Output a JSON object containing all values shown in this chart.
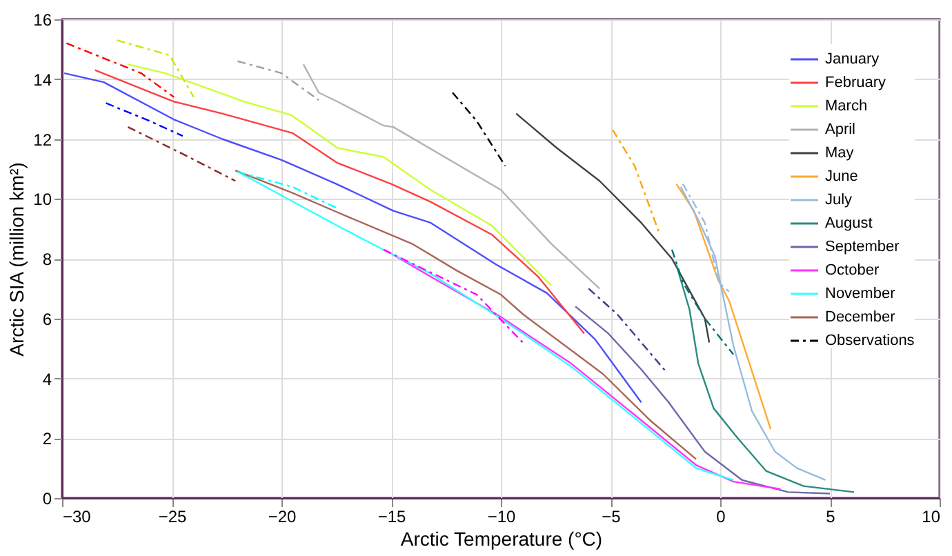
{
  "chart_data": {
    "type": "line",
    "xlabel": "Arctic Temperature (°C)",
    "ylabel": "Arctic SIA (million km²)",
    "xlim": [
      -30,
      10
    ],
    "ylim": [
      0,
      16
    ],
    "xticks": [
      -30,
      -25,
      -20,
      -15,
      -10,
      -5,
      0,
      5,
      10
    ],
    "yticks": [
      0,
      2,
      4,
      6,
      8,
      10,
      12,
      14,
      16
    ],
    "grid": true,
    "legend": "top right",
    "line_style": "solid",
    "series": [
      {
        "name": "January",
        "color": "#4d4dff",
        "x": [
          -29.9,
          -28.1,
          -24.9,
          -22.7,
          -20,
          -17.5,
          -14.9,
          -13.2,
          -10.2,
          -7.9,
          -5.7,
          -3.6
        ],
        "values": [
          14.2,
          13.9,
          12.65,
          12.0,
          11.3,
          10.5,
          9.6,
          9.2,
          7.8,
          6.85,
          5.3,
          3.2
        ]
      },
      {
        "name": "February",
        "color": "#ff4040",
        "x": [
          -28.5,
          -24.9,
          -22.7,
          -19.5,
          -17.45,
          -15,
          -13.2,
          -10.4,
          -8.3,
          -6.2
        ],
        "values": [
          14.3,
          13.25,
          12.85,
          12.2,
          11.2,
          10.5,
          9.9,
          8.8,
          7.4,
          5.5
        ]
      },
      {
        "name": "March",
        "color": "#ccff33",
        "x": [
          -27,
          -25.3,
          -21.7,
          -19.55,
          -17.45,
          -15.35,
          -13.2,
          -10.4,
          -7.7
        ],
        "values": [
          14.5,
          14.2,
          13.25,
          12.8,
          11.7,
          11.4,
          10.3,
          9.1,
          7.1
        ]
      },
      {
        "name": "April",
        "color": "#b3b3b3",
        "x": [
          -19,
          -18.3,
          -17.45,
          -15.35,
          -14.9,
          -10,
          -7.7,
          -5.5
        ],
        "values": [
          14.5,
          13.55,
          13.25,
          12.45,
          12.4,
          10.3,
          8.5,
          7.0
        ]
      },
      {
        "name": "May",
        "color": "#404040",
        "x": [
          -9.3,
          -7.45,
          -5.5,
          -3.6,
          -2.2,
          -0.7,
          -0.5
        ],
        "values": [
          12.85,
          11.7,
          10.6,
          9.2,
          8.0,
          6.0,
          5.2
        ]
      },
      {
        "name": "June",
        "color": "#ffaa33",
        "x": [
          -2.0,
          -1.2,
          -0.1,
          0.4,
          1.2,
          2.3
        ],
        "values": [
          10.5,
          9.6,
          7.3,
          6.6,
          4.8,
          2.3
        ]
      },
      {
        "name": "July",
        "color": "#99bbdd",
        "x": [
          -1.8,
          -1.0,
          -0.25,
          0.6,
          1.45,
          2.5,
          3.5,
          4.8
        ],
        "values": [
          10.4,
          9.3,
          8.1,
          5.1,
          2.9,
          1.55,
          1.0,
          0.6
        ]
      },
      {
        "name": "August",
        "color": "#2a8c80",
        "x": [
          -2.0,
          -1.4,
          -1.0,
          -0.3,
          0.8,
          2.1,
          3.8,
          6.1
        ],
        "values": [
          7.8,
          6.3,
          4.5,
          3.0,
          2.0,
          0.9,
          0.4,
          0.2
        ]
      },
      {
        "name": "September",
        "color": "#6a6aaa",
        "x": [
          -6.6,
          -5.1,
          -3.6,
          -2.35,
          -0.7,
          1.0,
          3.1,
          5.0
        ],
        "values": [
          6.4,
          5.5,
          4.3,
          3.2,
          1.55,
          0.6,
          0.2,
          0.15
        ]
      },
      {
        "name": "October",
        "color": "#ff33ff",
        "x": [
          -15.3,
          -13.2,
          -10,
          -6.8,
          -3.6,
          -1.1,
          0.6,
          2.75
        ],
        "values": [
          8.3,
          7.4,
          6.05,
          4.5,
          2.6,
          1.1,
          0.55,
          0.3
        ]
      },
      {
        "name": "November",
        "color": "#33ffff",
        "x": [
          -22.1,
          -17.45,
          -15.35,
          -13.2,
          -10,
          -6.8,
          -3.6,
          -1.1,
          0.6
        ],
        "values": [
          10.95,
          9.1,
          8.3,
          7.5,
          6.0,
          4.4,
          2.5,
          1.0,
          0.6
        ]
      },
      {
        "name": "December",
        "color": "#aa6655",
        "x": [
          -22.1,
          -19.5,
          -17.45,
          -14.05,
          -12,
          -10,
          -9,
          -5.35,
          -3.2,
          -1.1
        ],
        "values": [
          10.95,
          10.2,
          9.55,
          8.5,
          7.6,
          6.8,
          6.15,
          4.15,
          2.6,
          1.3
        ]
      },
      {
        "color": "#0000ff",
        "line_style": "dashed",
        "x": [
          -28,
          -26,
          -24.5
        ],
        "values": [
          13.2,
          12.6,
          12.1
        ]
      },
      {
        "color": "#ff0000",
        "line_style": "dashed",
        "x": [
          -29.8,
          -26.4,
          -24.9
        ],
        "values": [
          15.2,
          14.2,
          13.4
        ]
      },
      {
        "color": "#bbee00",
        "line_style": "dashed",
        "x": [
          -27.5,
          -25.1,
          -24
        ],
        "values": [
          15.3,
          14.8,
          13.4
        ]
      },
      {
        "color": "#a0a0a0",
        "line_style": "dashed",
        "x": [
          -22,
          -20,
          -18.3
        ],
        "values": [
          14.6,
          14.2,
          13.3
        ]
      },
      {
        "color": "#ffa500",
        "line_style": "dashed",
        "x": [
          -4.9,
          -3.9,
          -2.8
        ],
        "values": [
          12.3,
          11.1,
          8.9
        ]
      },
      {
        "color": "#99bbdd",
        "line_style": "dashed",
        "x": [
          -1.7,
          -0.7,
          -0.06,
          0.4
        ],
        "values": [
          10.5,
          9.2,
          7.2,
          6.9
        ]
      },
      {
        "color": "#007070",
        "line_style": "dashed",
        "x": [
          -2.2,
          -1.7,
          -0.7,
          0.6
        ],
        "values": [
          8.3,
          7.2,
          6.0,
          4.8
        ]
      },
      {
        "color": "#3c3c8c",
        "line_style": "dashed",
        "x": [
          -6.0,
          -4.7,
          -2.5
        ],
        "values": [
          7.0,
          6.15,
          4.25
        ]
      },
      {
        "color": "#ff00ff",
        "line_style": "dashed",
        "x": [
          -15.35,
          -11.1,
          -9.0
        ],
        "values": [
          8.3,
          6.8,
          5.2
        ]
      },
      {
        "color": "#00ffff",
        "line_style": "dashed",
        "x": [
          -22,
          -19.5,
          -17.5
        ],
        "values": [
          10.9,
          10.4,
          9.7
        ]
      },
      {
        "color": "#8b2a2a",
        "line_style": "dashed",
        "x": [
          -27,
          -24.5,
          -22.1
        ],
        "values": [
          12.4,
          11.5,
          10.6
        ]
      },
      {
        "name": "Observations",
        "color": "#000000",
        "line_style": "dashed",
        "x": [
          -12.2,
          -11.1,
          -9.8
        ],
        "values": [
          13.55,
          12.6,
          11.1
        ]
      }
    ]
  }
}
